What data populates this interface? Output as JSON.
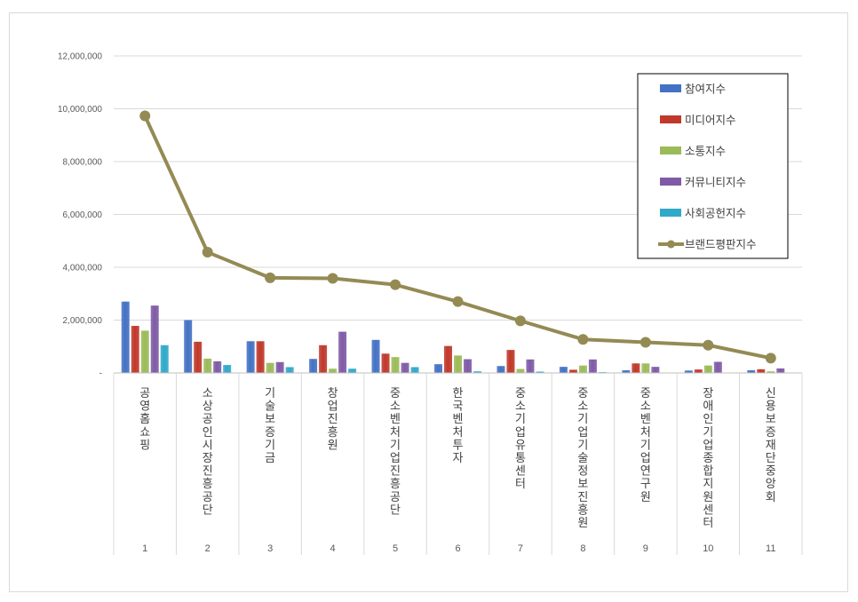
{
  "chart_data": {
    "type": "bar",
    "title": "",
    "xlabel": "",
    "ylabel": "",
    "ylim": [
      0,
      12000000
    ],
    "yticks": [
      "-",
      "2,000,000",
      "4,000,000",
      "6,000,000",
      "8,000,000",
      "10,000,000",
      "12,000,000"
    ],
    "grid": true,
    "legend_position": "top-right",
    "categories": [
      "공영홈쇼핑",
      "소상공인시장진흥공단",
      "기술보증기금",
      "창업진흥원",
      "중소벤처기업진흥공단",
      "한국벤처투자",
      "중소기업유통센터",
      "중소기업기술정보진흥원",
      "중소벤처기업연구원",
      "장애인기업종합지원센터",
      "신용보증재단중앙회"
    ],
    "ranks": [
      "1",
      "2",
      "3",
      "4",
      "5",
      "6",
      "7",
      "8",
      "9",
      "10",
      "11"
    ],
    "series": [
      {
        "name": "참여지수",
        "type": "bar",
        "color": "#4472c4",
        "values": [
          2700000,
          2000000,
          1200000,
          530000,
          1250000,
          330000,
          260000,
          230000,
          100000,
          90000,
          100000
        ]
      },
      {
        "name": "미디어지수",
        "type": "bar",
        "color": "#c0392b",
        "values": [
          1780000,
          1180000,
          1200000,
          1050000,
          730000,
          1020000,
          870000,
          120000,
          360000,
          130000,
          140000
        ]
      },
      {
        "name": "소통지수",
        "type": "bar",
        "color": "#9bbb59",
        "values": [
          1600000,
          540000,
          380000,
          160000,
          600000,
          660000,
          150000,
          280000,
          360000,
          280000,
          60000
        ]
      },
      {
        "name": "커뮤니티지수",
        "type": "bar",
        "color": "#7f5ba6",
        "values": [
          2550000,
          440000,
          410000,
          1560000,
          380000,
          520000,
          510000,
          510000,
          230000,
          420000,
          170000
        ]
      },
      {
        "name": "사회공헌지수",
        "type": "bar",
        "color": "#31a9c9",
        "values": [
          1050000,
          300000,
          220000,
          160000,
          220000,
          60000,
          50000,
          30000,
          0,
          0,
          0
        ]
      },
      {
        "name": "브랜드평판지수",
        "type": "line",
        "color": "#948a54",
        "values": [
          9730000,
          4570000,
          3600000,
          3580000,
          3340000,
          2700000,
          1970000,
          1270000,
          1160000,
          1050000,
          560000
        ]
      }
    ]
  }
}
